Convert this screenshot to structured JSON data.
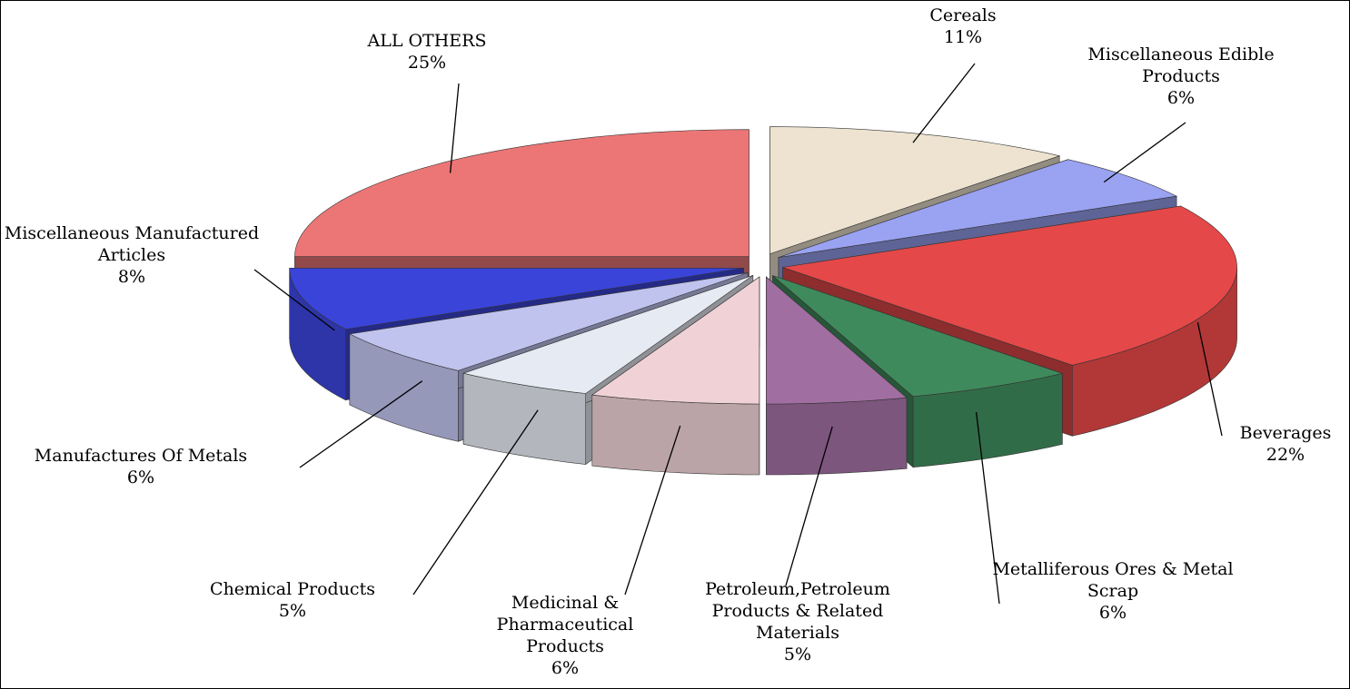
{
  "chart_data": {
    "type": "pie",
    "categories": [
      "Cereals",
      "Miscellaneous Edible Products",
      "Beverages",
      "Metalliferous Ores & Metal Scrap",
      "Petroleum,Petroleum Products & Related Materials",
      "Medicinal & Pharmaceutical Products",
      "Chemical Products",
      "Manufactures Of Metals",
      "Miscellaneous Manufactured Articles",
      "ALL OTHERS"
    ],
    "values": [
      11,
      6,
      22,
      6,
      5,
      6,
      5,
      6,
      8,
      25
    ],
    "value_labels": [
      "11%",
      "6%",
      "22%",
      "6%",
      "5%",
      "6%",
      "5%",
      "6%",
      "8%",
      "25%"
    ],
    "colors": [
      "#ede3d0",
      "#9aa2f2",
      "#e44848",
      "#3f8a5c",
      "#a06ea0",
      "#f0d2d6",
      "#e6eaf2",
      "#c0c3ee",
      "#3a44d8",
      "#ec7676"
    ]
  }
}
